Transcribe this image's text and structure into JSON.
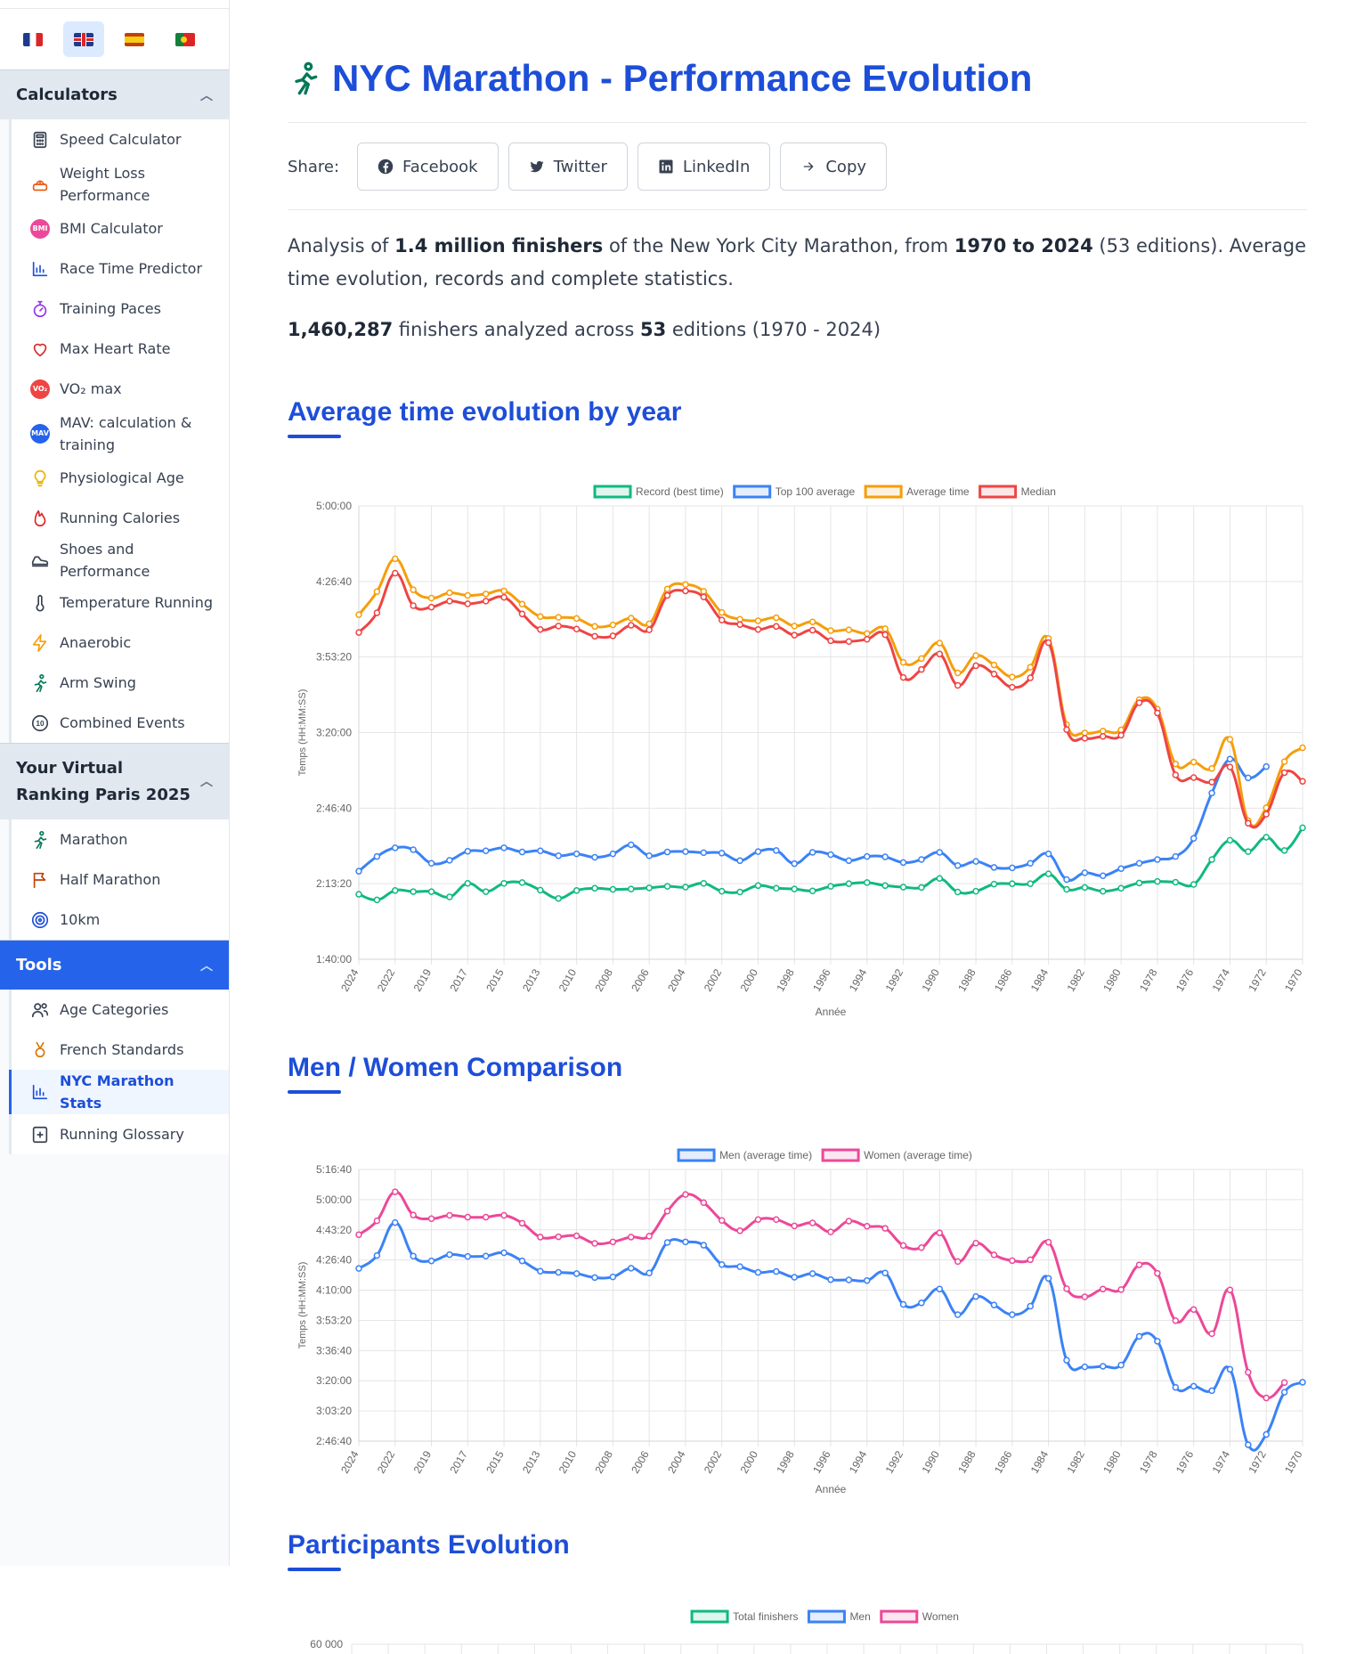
{
  "languages": [
    {
      "name": "fr-flag-icon",
      "active": false
    },
    {
      "name": "gb-flag-icon",
      "active": true
    },
    {
      "name": "es-flag-icon",
      "active": false
    },
    {
      "name": "pt-flag-icon",
      "active": false
    }
  ],
  "sidebar": {
    "calculators_header": "Calculators",
    "calculators": [
      {
        "label": "Speed Calculator",
        "icon": "calculator-icon"
      },
      {
        "label": "Weight Loss Performance",
        "icon": "scale-icon"
      },
      {
        "label": "BMI Calculator",
        "icon": "bmi-icon"
      },
      {
        "label": "Race Time Predictor",
        "icon": "bar-chart-icon"
      },
      {
        "label": "Training Paces",
        "icon": "stopwatch-icon"
      },
      {
        "label": "Max Heart Rate",
        "icon": "heart-icon"
      },
      {
        "label": "VO₂ max",
        "icon": "vo2-icon"
      },
      {
        "label": "MAV: calculation & training",
        "icon": "mav-icon"
      },
      {
        "label": "Physiological Age",
        "icon": "lightbulb-icon"
      },
      {
        "label": "Running Calories",
        "icon": "flame-icon"
      },
      {
        "label": "Shoes and Performance",
        "icon": "shoe-icon"
      },
      {
        "label": "Temperature Running",
        "icon": "thermometer-icon"
      },
      {
        "label": "Anaerobic",
        "icon": "lightning-icon"
      },
      {
        "label": "Arm Swing",
        "icon": "runner-icon"
      },
      {
        "label": "Combined Events",
        "icon": "ten-icon"
      }
    ],
    "ranking_header": "Your Virtual Ranking Paris 2025",
    "ranking": [
      {
        "label": "Marathon",
        "icon": "runner-icon"
      },
      {
        "label": "Half Marathon",
        "icon": "flag-icon"
      },
      {
        "label": "10km",
        "icon": "target-icon"
      }
    ],
    "tools_header": "Tools",
    "tools": [
      {
        "label": "Age Categories",
        "icon": "users-icon"
      },
      {
        "label": "French Standards",
        "icon": "medal-icon"
      },
      {
        "label": "NYC Marathon Stats",
        "icon": "bar-chart-icon",
        "active": true
      },
      {
        "label": "Running Glossary",
        "icon": "book-icon"
      }
    ]
  },
  "page": {
    "title": "NYC Marathon - Performance Evolution",
    "share_label": "Share:",
    "share_buttons": [
      {
        "label": "Facebook",
        "icon": "facebook-icon"
      },
      {
        "label": "Twitter",
        "icon": "twitter-icon"
      },
      {
        "label": "LinkedIn",
        "icon": "linkedin-icon"
      },
      {
        "label": "Copy",
        "icon": "arrow-right-icon"
      }
    ],
    "intro": {
      "p1": "Analysis of ",
      "b1": "1.4 million finishers",
      "p2": " of the New York City Marathon, from ",
      "b2": "1970 to 2024",
      "p3": " (53 editions). Average time evolution, records and complete statistics."
    },
    "stats": {
      "finishers": "1,460,287",
      "mid": " finishers analyzed across ",
      "editions": "53",
      "tail": " editions (1970 - 2024)"
    },
    "sections": {
      "avg": "Average time evolution by year",
      "mw": "Men / Women Comparison",
      "participants": "Participants Evolution"
    }
  },
  "colors": {
    "record": "#10b981",
    "top100": "#3b82f6",
    "average": "#f59e0b",
    "median": "#ef4444",
    "men": "#3b82f6",
    "women": "#ec4899",
    "accent": "#1d4ed8"
  },
  "chart_data": [
    {
      "type": "line",
      "xlabel": "Année",
      "ylabel": "Temps (HH:MM:SS)",
      "ylim_seconds": [
        6000,
        18000
      ],
      "y_ticks": [
        "1:40:00",
        "2:13:20",
        "2:46:40",
        "3:20:00",
        "3:53:20",
        "4:26:40",
        "5:00:00"
      ],
      "x_ticks": [
        "2024",
        "2022",
        "2019",
        "2017",
        "2015",
        "2013",
        "2010",
        "2008",
        "2006",
        "2004",
        "2002",
        "2000",
        "1998",
        "1996",
        "1994",
        "1992",
        "1990",
        "1988",
        "1986",
        "1984",
        "1982",
        "1980",
        "1978",
        "1976",
        "1974",
        "1972",
        "1970"
      ],
      "x": [
        2024,
        2023,
        2022,
        2021,
        2019,
        2018,
        2017,
        2016,
        2015,
        2014,
        2013,
        2011,
        2010,
        2009,
        2008,
        2007,
        2006,
        2005,
        2004,
        2003,
        2002,
        2001,
        2000,
        1999,
        1998,
        1997,
        1996,
        1995,
        1994,
        1993,
        1992,
        1991,
        1990,
        1989,
        1988,
        1987,
        1986,
        1985,
        1984,
        1983,
        1982,
        1981,
        1980,
        1979,
        1978,
        1977,
        1976,
        1975,
        1974,
        1973,
        1972,
        1971,
        1970
      ],
      "legend": "top",
      "series": [
        {
          "name": "Record (best time)",
          "values": [
            7720,
            7570,
            7820,
            7790,
            7790,
            7650,
            8010,
            7790,
            8010,
            8030,
            7830,
            7610,
            7820,
            7880,
            7850,
            7860,
            7890,
            7930,
            7910,
            8010,
            7800,
            7780,
            7950,
            7880,
            7860,
            7810,
            7930,
            8000,
            8030,
            7950,
            7910,
            7900,
            8140,
            7780,
            7800,
            7990,
            8000,
            8000,
            8260,
            7850,
            7900,
            7800,
            7880,
            8020,
            8060,
            8040,
            7980,
            8640,
            9150,
            8850,
            9230,
            8880,
            9480
          ]
        },
        {
          "name": "Top 100 average",
          "values": [
            8330,
            8720,
            8950,
            8900,
            8540,
            8620,
            8860,
            8870,
            8950,
            8840,
            8870,
            8740,
            8790,
            8700,
            8790,
            9030,
            8740,
            8840,
            8850,
            8820,
            8810,
            8610,
            8850,
            8880,
            8530,
            8830,
            8770,
            8610,
            8720,
            8710,
            8560,
            8640,
            8830,
            8480,
            8590,
            8430,
            8420,
            8540,
            8790,
            8110,
            8290,
            8210,
            8400,
            8540,
            8640,
            8720,
            9200,
            10400,
            11300,
            10800,
            11100,
            null,
            null
          ]
        },
        {
          "name": "Average time",
          "values": [
            15120,
            15730,
            16600,
            15780,
            15560,
            15700,
            15630,
            15670,
            15750,
            15400,
            15070,
            15050,
            15020,
            14810,
            14850,
            15030,
            14880,
            15800,
            15920,
            15740,
            15180,
            15000,
            14960,
            15040,
            14820,
            14930,
            14700,
            14720,
            14620,
            14750,
            13860,
            13960,
            14370,
            13580,
            14040,
            13790,
            13470,
            13730,
            14490,
            12210,
            11990,
            12040,
            12070,
            12870,
            12620,
            11170,
            11220,
            11050,
            11820,
            9670,
            10010,
            11230,
            11600
          ]
        },
        {
          "name": "Median",
          "values": [
            14650,
            15170,
            16220,
            15360,
            15320,
            15480,
            15410,
            15480,
            15580,
            15140,
            14730,
            14820,
            14740,
            14550,
            14560,
            14840,
            14720,
            15630,
            15750,
            15590,
            14980,
            14860,
            14730,
            14810,
            14580,
            14710,
            14430,
            14410,
            14470,
            14590,
            13460,
            13670,
            14080,
            13250,
            13770,
            13550,
            13200,
            13450,
            14380,
            12080,
            11850,
            11900,
            11930,
            12790,
            12520,
            10880,
            10810,
            10690,
            11090,
            9600,
            9840,
            10940,
            10710
          ]
        }
      ]
    },
    {
      "type": "line",
      "xlabel": "Année",
      "ylabel": "Temps (HH:MM:SS)",
      "ylim_seconds": [
        10000,
        19000
      ],
      "y_ticks": [
        "2:46:40",
        "3:03:20",
        "3:20:00",
        "3:36:40",
        "3:53:20",
        "4:10:00",
        "4:26:40",
        "4:43:20",
        "5:00:00",
        "5:16:40"
      ],
      "x_ticks": [
        "2024",
        "2022",
        "2019",
        "2017",
        "2015",
        "2013",
        "2010",
        "2008",
        "2006",
        "2004",
        "2002",
        "2000",
        "1998",
        "1996",
        "1994",
        "1992",
        "1990",
        "1988",
        "1986",
        "1984",
        "1982",
        "1980",
        "1978",
        "1976",
        "1974",
        "1972",
        "1970"
      ],
      "legend": "top",
      "series": [
        {
          "name": "Men (average time)",
          "values": [
            15720,
            16150,
            17240,
            16130,
            15970,
            16180,
            16120,
            16130,
            16240,
            15970,
            15630,
            15590,
            15550,
            15420,
            15440,
            15730,
            15570,
            16580,
            16600,
            16490,
            15850,
            15780,
            15590,
            15620,
            15430,
            15550,
            15350,
            15340,
            15320,
            15570,
            14530,
            14580,
            15040,
            14190,
            14790,
            14510,
            14190,
            14470,
            15390,
            12680,
            12460,
            12480,
            12520,
            13470,
            13310,
            11780,
            11820,
            11670,
            12380,
            9880,
            10220,
            11620,
            11950
          ]
        },
        {
          "name": "Women (average time)",
          "values": [
            16840,
            17300,
            18260,
            17490,
            17370,
            17480,
            17420,
            17420,
            17480,
            17220,
            16760,
            16770,
            16800,
            16550,
            16600,
            16760,
            16790,
            17620,
            18170,
            17900,
            17310,
            16970,
            17340,
            17340,
            17130,
            17230,
            16930,
            17290,
            17120,
            17050,
            16480,
            16410,
            16900,
            15950,
            16560,
            16170,
            15980,
            16010,
            16590,
            15050,
            14780,
            15040,
            15020,
            15840,
            15560,
            13990,
            14360,
            13560,
            15010,
            12280,
            11430,
            11940,
            null
          ]
        }
      ]
    }
  ],
  "participants_chart": {
    "legend": [
      "Total finishers",
      "Men",
      "Women"
    ],
    "y_top_label": "60 000"
  }
}
